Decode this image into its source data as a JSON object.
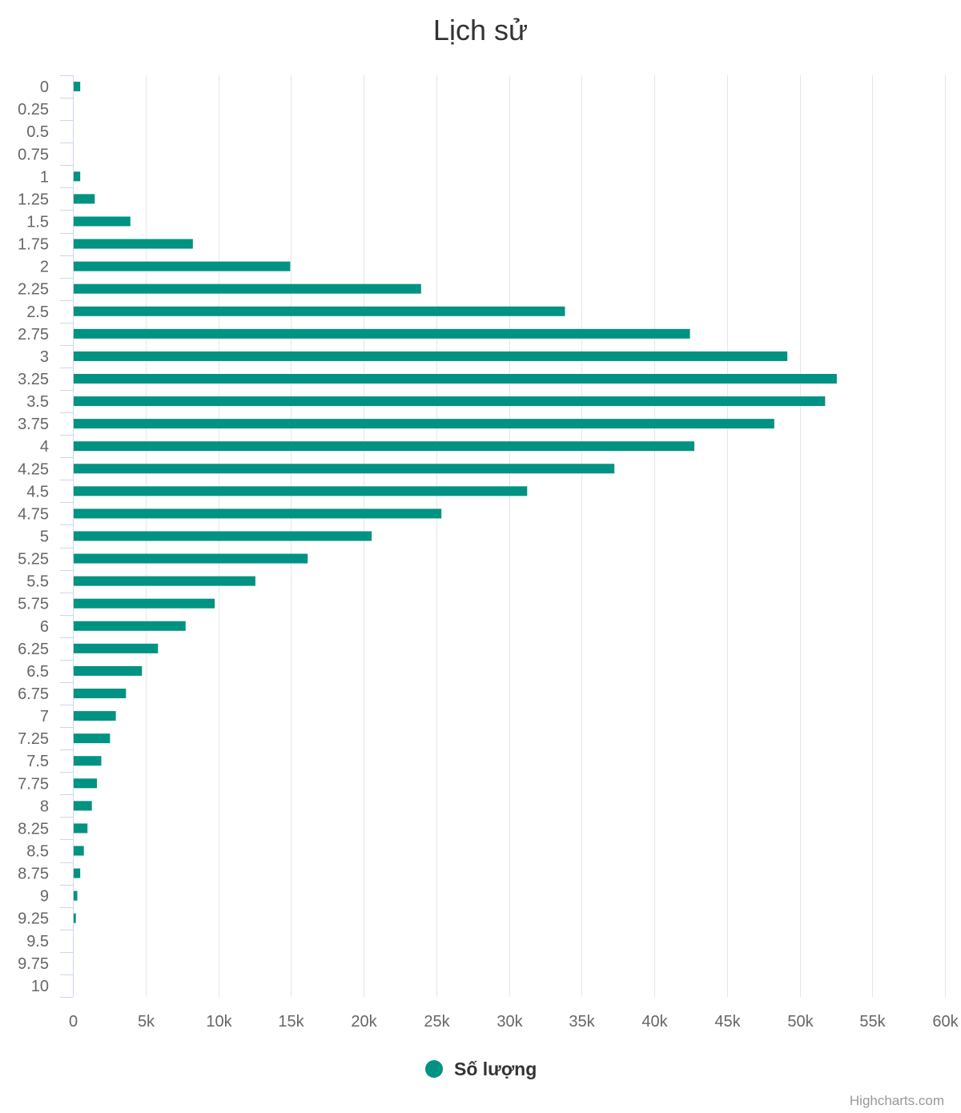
{
  "chart_data": {
    "type": "bar",
    "orientation": "horizontal",
    "title": "Lịch sử",
    "categories": [
      "0",
      "0.25",
      "0.5",
      "0.75",
      "1",
      "1.25",
      "1.5",
      "1.75",
      "2",
      "2.25",
      "2.5",
      "2.75",
      "3",
      "3.25",
      "3.5",
      "3.75",
      "4",
      "4.25",
      "4.5",
      "4.75",
      "5",
      "5.25",
      "5.5",
      "5.75",
      "6",
      "6.25",
      "6.5",
      "6.75",
      "7",
      "7.25",
      "7.5",
      "7.75",
      "8",
      "8.25",
      "8.5",
      "8.75",
      "9",
      "9.25",
      "9.5",
      "9.75",
      "10"
    ],
    "series": [
      {
        "name": "Số lượng",
        "color": "#009282",
        "values": [
          450,
          0,
          0,
          0,
          450,
          1450,
          3900,
          8200,
          14900,
          23900,
          33800,
          42400,
          49100,
          52500,
          51700,
          48200,
          42700,
          37200,
          31200,
          25300,
          20500,
          16100,
          12500,
          9700,
          7700,
          5800,
          4700,
          3600,
          2900,
          2500,
          1900,
          1600,
          1250,
          950,
          700,
          450,
          250,
          150,
          0,
          0,
          0
        ]
      }
    ],
    "value_axis": {
      "min": 0,
      "max": 60000,
      "tick_interval": 5000,
      "tick_labels": [
        "0",
        "5k",
        "10k",
        "15k",
        "20k",
        "25k",
        "30k",
        "35k",
        "40k",
        "45k",
        "50k",
        "55k",
        "60k"
      ]
    },
    "grid": true,
    "legend": {
      "position": "bottom-center",
      "entries": [
        "Số lượng"
      ]
    },
    "credits": "Highcharts.com",
    "colors": {
      "bar": "#009282",
      "grid": "#e6e6e6",
      "axis_line": "#ccd6eb",
      "label": "#666666",
      "title": "#333333"
    }
  }
}
